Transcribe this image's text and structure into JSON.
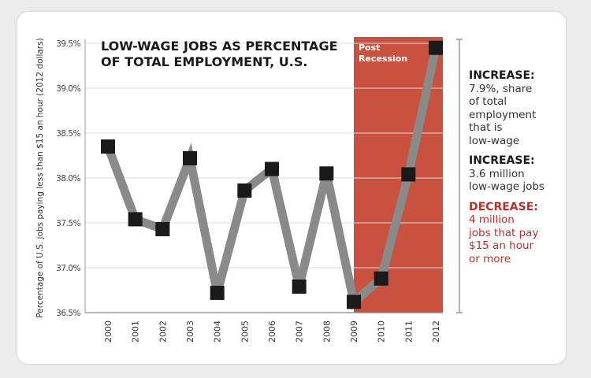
{
  "chart_data": {
    "type": "line",
    "title_line1": "LOW-WAGE JOBS AS PERCENTAGE",
    "title_line2": "OF TOTAL EMPLOYMENT, U.S.",
    "xlabel": "",
    "ylabel": "Percentage of U.S. jobs paying less than $15 an hour (2012 dollars)",
    "ylim": [
      36.5,
      39.5
    ],
    "yticks": [
      36.5,
      37.0,
      37.5,
      38.0,
      38.5,
      39.0,
      39.5
    ],
    "ytick_labels": [
      "36.5%",
      "37.0%",
      "37.5%",
      "38.0%",
      "38.5%",
      "39.0%",
      "39.5%"
    ],
    "categories": [
      "2000",
      "2001",
      "2002",
      "2003",
      "2004",
      "2005",
      "2006",
      "2007",
      "2008",
      "2009",
      "2010",
      "2011",
      "2012"
    ],
    "values": [
      38.35,
      37.54,
      37.43,
      38.22,
      36.72,
      37.86,
      38.1,
      36.79,
      38.05,
      36.62,
      36.88,
      38.04,
      39.45
    ],
    "grid": true,
    "shaded_region": {
      "label_line1": "Post",
      "label_line2": "Recession",
      "from": "2009",
      "to": "2012",
      "color": "#c85140"
    },
    "line_color": "#8a8a8a",
    "marker_color": "#1a1a1a"
  },
  "annotations": [
    {
      "heading": "INCREASE:",
      "lines": [
        "7.9%, share",
        "of total",
        "employment",
        "that is",
        "low-wage"
      ],
      "color": "#333333"
    },
    {
      "heading": "INCREASE:",
      "lines": [
        "3.6 million",
        "low-wage jobs"
      ],
      "color": "#333333"
    },
    {
      "heading": "DECREASE:",
      "lines": [
        "4 million",
        "jobs that pay",
        "$15 an hour",
        "or more"
      ],
      "color": "#b8302a"
    }
  ]
}
